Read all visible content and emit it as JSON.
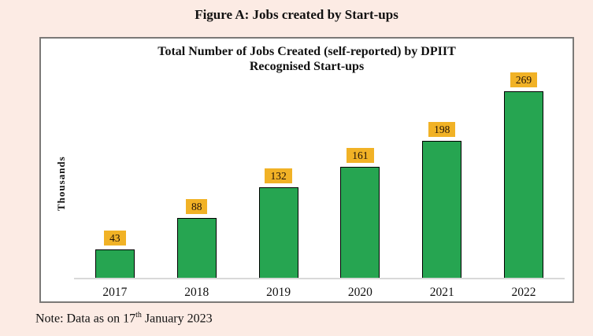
{
  "page": {
    "figure_title": "Figure A: Jobs created by Start-ups",
    "note": {
      "prefix": "Note: Data as on 17",
      "superscript": "th",
      "suffix": " January 2023"
    }
  },
  "chart": {
    "title_line1": "Total Number of Jobs Created (self-reported) by DPIIT",
    "title_line2": "Recognised Start-ups",
    "ylabel": "Thousands"
  },
  "chart_data": {
    "type": "bar",
    "categories": [
      "2017",
      "2018",
      "2019",
      "2020",
      "2021",
      "2022"
    ],
    "values": [
      43,
      88,
      132,
      161,
      198,
      269
    ],
    "title": "Total Number of Jobs Created (self-reported) by DPIIT Recognised Start-ups",
    "xlabel": "",
    "ylabel": "Thousands",
    "ylim": [
      0,
      300
    ],
    "grid": false,
    "legend": false,
    "data_labels": true,
    "colors": {
      "bar_fill": "#26A551",
      "bar_border": "#000000",
      "label_bg": "#F1B226",
      "label_text": "#201208",
      "page_bg": "#FCEBE4",
      "panel_bg": "#FFFFFF",
      "panel_border": "#7B7977",
      "baseline": "#D9D9D9"
    }
  }
}
